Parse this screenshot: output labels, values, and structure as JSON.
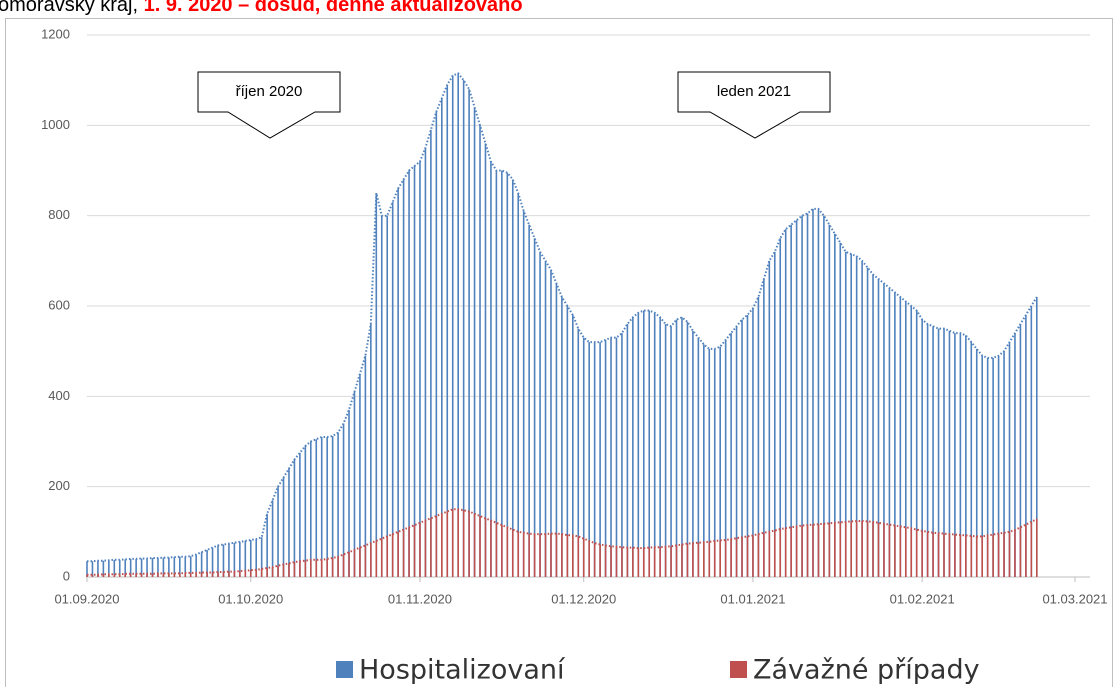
{
  "chart_data": {
    "type": "bar",
    "title_parts": [
      "omoravský kraj, ",
      "1. 9. 2020 – dosud, denně aktualizováno"
    ],
    "annotations": [
      "říjen 2020",
      "leden 2021"
    ],
    "x": [
      "2020-09-01",
      "2020-09-02",
      "2020-09-03",
      "2020-09-04",
      "2020-09-05",
      "2020-09-06",
      "2020-09-07",
      "2020-09-08",
      "2020-09-09",
      "2020-09-10",
      "2020-09-11",
      "2020-09-12",
      "2020-09-13",
      "2020-09-14",
      "2020-09-15",
      "2020-09-16",
      "2020-09-17",
      "2020-09-18",
      "2020-09-19",
      "2020-09-20",
      "2020-09-21",
      "2020-09-22",
      "2020-09-23",
      "2020-09-24",
      "2020-09-25",
      "2020-09-26",
      "2020-09-27",
      "2020-09-28",
      "2020-09-29",
      "2020-09-30",
      "2020-10-01",
      "2020-10-02",
      "2020-10-03",
      "2020-10-04",
      "2020-10-05",
      "2020-10-06",
      "2020-10-07",
      "2020-10-08",
      "2020-10-09",
      "2020-10-10",
      "2020-10-11",
      "2020-10-12",
      "2020-10-13",
      "2020-10-14",
      "2020-10-15",
      "2020-10-16",
      "2020-10-17",
      "2020-10-18",
      "2020-10-19",
      "2020-10-20",
      "2020-10-21",
      "2020-10-22",
      "2020-10-23",
      "2020-10-24",
      "2020-10-25",
      "2020-10-26",
      "2020-10-27",
      "2020-10-28",
      "2020-10-29",
      "2020-10-30",
      "2020-10-31",
      "2020-11-01",
      "2020-11-02",
      "2020-11-03",
      "2020-11-04",
      "2020-11-05",
      "2020-11-06",
      "2020-11-07",
      "2020-11-08",
      "2020-11-09",
      "2020-11-10",
      "2020-11-11",
      "2020-11-12",
      "2020-11-13",
      "2020-11-14",
      "2020-11-15",
      "2020-11-16",
      "2020-11-17",
      "2020-11-18",
      "2020-11-19",
      "2020-11-20",
      "2020-11-21",
      "2020-11-22",
      "2020-11-23",
      "2020-11-24",
      "2020-11-25",
      "2020-11-26",
      "2020-11-27",
      "2020-11-28",
      "2020-11-29",
      "2020-11-30",
      "2020-12-01",
      "2020-12-02",
      "2020-12-03",
      "2020-12-04",
      "2020-12-05",
      "2020-12-06",
      "2020-12-07",
      "2020-12-08",
      "2020-12-09",
      "2020-12-10",
      "2020-12-11",
      "2020-12-12",
      "2020-12-13",
      "2020-12-14",
      "2020-12-15",
      "2020-12-16",
      "2020-12-17",
      "2020-12-18",
      "2020-12-19",
      "2020-12-20",
      "2020-12-21",
      "2020-12-22",
      "2020-12-23",
      "2020-12-24",
      "2020-12-25",
      "2020-12-26",
      "2020-12-27",
      "2020-12-28",
      "2020-12-29",
      "2020-12-30",
      "2020-12-31",
      "2021-01-01",
      "2021-01-02",
      "2021-01-03",
      "2021-01-04",
      "2021-01-05",
      "2021-01-06",
      "2021-01-07",
      "2021-01-08",
      "2021-01-09",
      "2021-01-10",
      "2021-01-11",
      "2021-01-12",
      "2021-01-13",
      "2021-01-14",
      "2021-01-15",
      "2021-01-16",
      "2021-01-17",
      "2021-01-18",
      "2021-01-19",
      "2021-01-20",
      "2021-01-21",
      "2021-01-22",
      "2021-01-23",
      "2021-01-24",
      "2021-01-25",
      "2021-01-26",
      "2021-01-27",
      "2021-01-28",
      "2021-01-29",
      "2021-01-30",
      "2021-01-31",
      "2021-02-01",
      "2021-02-02",
      "2021-02-03",
      "2021-02-04",
      "2021-02-05",
      "2021-02-06",
      "2021-02-07",
      "2021-02-08",
      "2021-02-09",
      "2021-02-10",
      "2021-02-11",
      "2021-02-12",
      "2021-02-13",
      "2021-02-14",
      "2021-02-15",
      "2021-02-16",
      "2021-02-17",
      "2021-02-18",
      "2021-02-19",
      "2021-02-20",
      "2021-02-21",
      "2021-02-22"
    ],
    "series": [
      {
        "name": "Hospitalizovaní",
        "color": "#4f81bd",
        "values": [
          35,
          35,
          36,
          36,
          37,
          38,
          38,
          39,
          40,
          40,
          41,
          41,
          42,
          42,
          43,
          43,
          44,
          45,
          45,
          46,
          50,
          55,
          60,
          65,
          70,
          72,
          74,
          76,
          78,
          80,
          82,
          84,
          88,
          140,
          170,
          200,
          220,
          240,
          260,
          275,
          290,
          300,
          305,
          310,
          310,
          312,
          320,
          340,
          370,
          410,
          450,
          490,
          560,
          850,
          800,
          800,
          830,
          860,
          880,
          900,
          910,
          920,
          950,
          990,
          1030,
          1060,
          1090,
          1110,
          1115,
          1100,
          1080,
          1040,
          1000,
          960,
          920,
          900,
          900,
          895,
          880,
          850,
          810,
          780,
          750,
          720,
          700,
          680,
          650,
          620,
          600,
          580,
          550,
          530,
          520,
          520,
          520,
          525,
          530,
          530,
          540,
          560,
          575,
          585,
          590,
          590,
          585,
          575,
          560,
          555,
          570,
          575,
          565,
          545,
          530,
          515,
          505,
          505,
          510,
          525,
          540,
          555,
          570,
          580,
          595,
          620,
          660,
          700,
          720,
          750,
          770,
          780,
          790,
          800,
          805,
          815,
          815,
          800,
          780,
          760,
          740,
          720,
          715,
          710,
          700,
          685,
          670,
          660,
          650,
          640,
          630,
          620,
          610,
          600,
          590,
          570,
          560,
          555,
          550,
          550,
          545,
          540,
          540,
          535,
          520,
          505,
          490,
          485,
          485,
          490,
          500,
          520,
          540,
          560,
          580,
          600,
          620
        ]
      },
      {
        "name": "Závažné případy",
        "color": "#c0504d",
        "values": [
          5,
          5,
          5,
          6,
          6,
          6,
          6,
          7,
          7,
          7,
          7,
          7,
          7,
          8,
          8,
          8,
          8,
          8,
          9,
          9,
          9,
          10,
          10,
          10,
          11,
          11,
          12,
          12,
          13,
          14,
          15,
          16,
          18,
          20,
          22,
          25,
          28,
          30,
          33,
          35,
          36,
          38,
          38,
          38,
          40,
          42,
          45,
          50,
          55,
          60,
          65,
          70,
          75,
          80,
          85,
          90,
          95,
          100,
          105,
          110,
          115,
          120,
          125,
          130,
          135,
          140,
          145,
          150,
          150,
          148,
          145,
          140,
          135,
          130,
          125,
          120,
          115,
          110,
          105,
          100,
          98,
          96,
          95,
          95,
          95,
          96,
          96,
          95,
          93,
          92,
          90,
          85,
          80,
          75,
          72,
          70,
          68,
          67,
          66,
          65,
          65,
          64,
          64,
          65,
          66,
          66,
          67,
          68,
          70,
          72,
          74,
          75,
          76,
          77,
          78,
          80,
          81,
          82,
          84,
          86,
          88,
          90,
          92,
          95,
          98,
          100,
          103,
          106,
          108,
          110,
          112,
          114,
          115,
          116,
          117,
          118,
          119,
          120,
          121,
          122,
          123,
          124,
          124,
          123,
          122,
          120,
          118,
          116,
          114,
          112,
          110,
          108,
          105,
          102,
          100,
          98,
          97,
          96,
          95,
          94,
          93,
          92,
          91,
          90,
          90,
          92,
          94,
          96,
          98,
          100,
          104,
          110,
          116,
          122,
          128
        ]
      }
    ],
    "xlim": [
      "2020-09-01",
      "2021-03-01"
    ],
    "xticks": [
      {
        "value": "2020-09-01",
        "label": "01.09.2020"
      },
      {
        "value": "2020-10-01",
        "label": "01.10.2020"
      },
      {
        "value": "2020-11-01",
        "label": "01.11.2020"
      },
      {
        "value": "2020-12-01",
        "label": "01.12.2020"
      },
      {
        "value": "2021-01-01",
        "label": "01.01.2021"
      },
      {
        "value": "2021-02-01",
        "label": "01.02.2021"
      },
      {
        "value": "2021-03-01",
        "label": "01.03.2021"
      }
    ],
    "ylim": [
      0,
      1200
    ],
    "yticks": [
      0,
      200,
      400,
      600,
      800,
      1000,
      1200
    ],
    "grid": true
  }
}
